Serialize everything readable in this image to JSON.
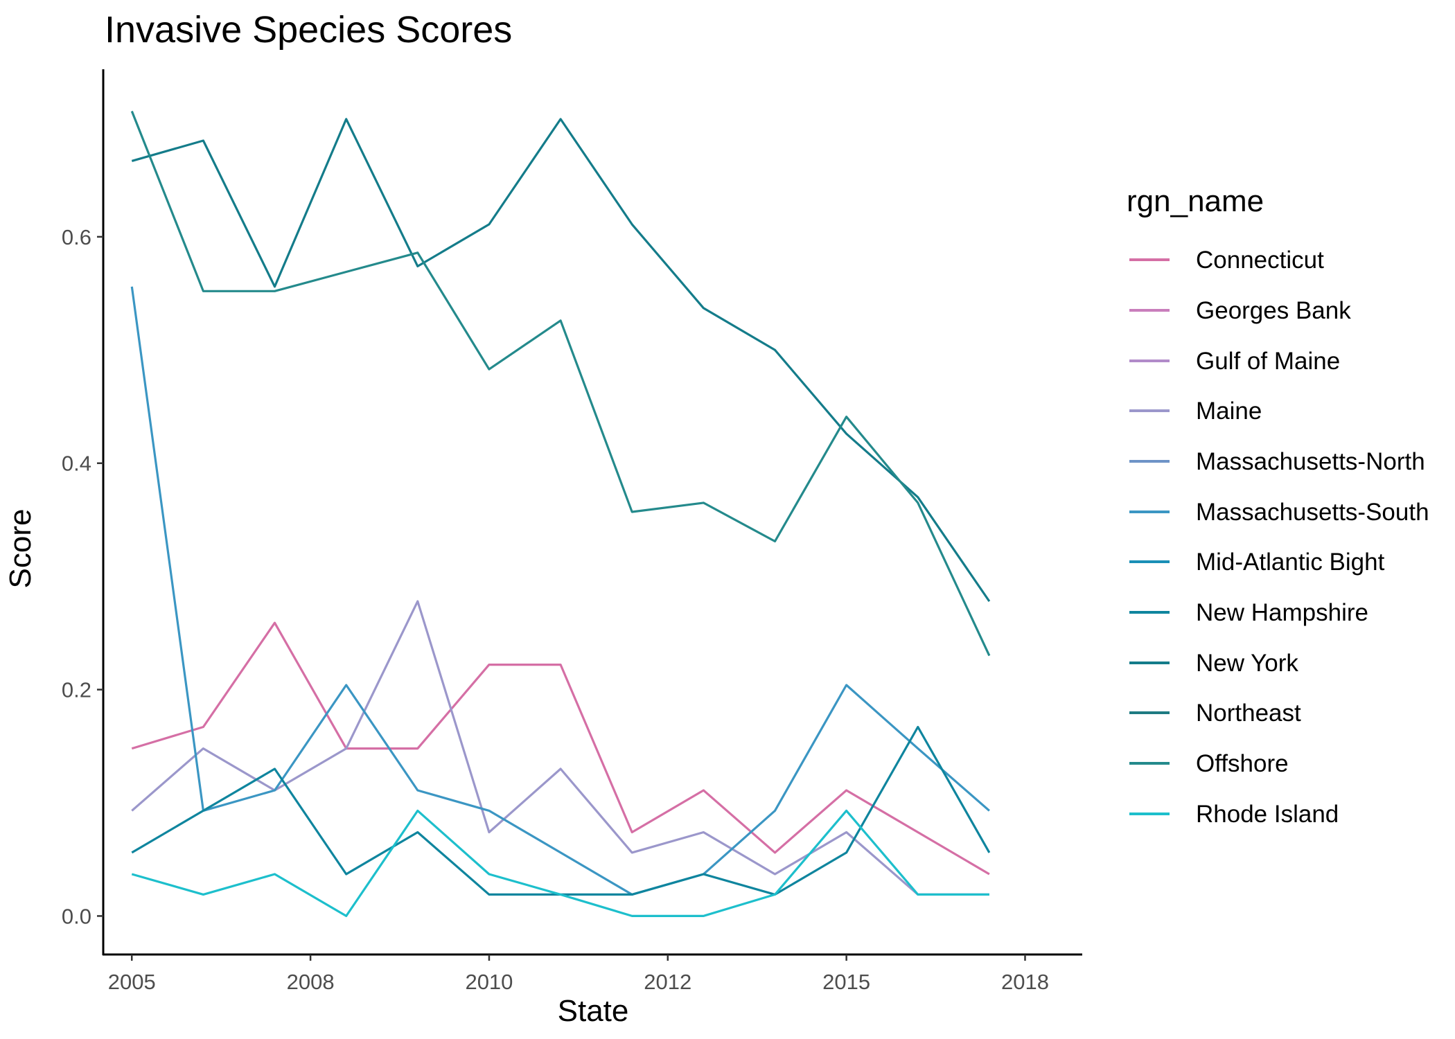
{
  "chart_data": {
    "type": "line",
    "title": "Invasive Species Scores",
    "xlabel": "State",
    "ylabel": "Score",
    "legend_title": "rgn_name",
    "legend_position": "right",
    "grid": false,
    "xlim": [
      2004.6,
      2018.3
    ],
    "ylim": [
      -0.034,
      0.748
    ],
    "x_ticks": [
      {
        "value": 2005,
        "label": "2005"
      },
      {
        "value": 2007.5,
        "label": "2008"
      },
      {
        "value": 2010,
        "label": "2010"
      },
      {
        "value": 2012.5,
        "label": "2012"
      },
      {
        "value": 2015,
        "label": "2015"
      },
      {
        "value": 2017.5,
        "label": "2018"
      }
    ],
    "y_ticks": [
      {
        "value": 0.0,
        "label": "0.0"
      },
      {
        "value": 0.2,
        "label": "0.2"
      },
      {
        "value": 0.4,
        "label": "0.4"
      },
      {
        "value": 0.6,
        "label": "0.6"
      }
    ],
    "x": [
      2005,
      2006,
      2007,
      2008,
      2009,
      2010,
      2011,
      2012,
      2013,
      2014,
      2015,
      2016,
      2017
    ],
    "series": [
      {
        "name": "Connecticut",
        "color": "#D56FA5",
        "values": [
          0.148,
          0.167,
          0.259,
          0.148,
          0.148,
          0.222,
          0.222,
          0.074,
          0.111,
          0.056,
          0.111,
          0.074,
          0.037
        ]
      },
      {
        "name": "Georges Bank",
        "color": "#C97EBC",
        "values": [
          null,
          null,
          null,
          null,
          null,
          null,
          null,
          null,
          null,
          null,
          null,
          null,
          null
        ]
      },
      {
        "name": "Gulf of Maine",
        "color": "#B18BC9",
        "values": [
          null,
          null,
          null,
          null,
          null,
          null,
          null,
          null,
          null,
          null,
          null,
          null,
          null
        ]
      },
      {
        "name": "Maine",
        "color": "#9B97CB",
        "values": [
          0.093,
          0.148,
          0.111,
          0.148,
          0.278,
          0.074,
          0.13,
          0.056,
          0.074,
          0.037,
          0.074,
          0.019,
          0.019
        ]
      },
      {
        "name": "Massachusetts-North",
        "color": "#6E93C7",
        "values": [
          null,
          null,
          null,
          null,
          null,
          null,
          null,
          null,
          null,
          null,
          null,
          null,
          null
        ]
      },
      {
        "name": "Massachusetts-South",
        "color": "#3B96C3",
        "values": [
          0.556,
          0.093,
          0.111,
          0.204,
          0.111,
          0.093,
          0.056,
          0.019,
          0.037,
          0.093,
          0.204,
          0.148,
          0.093
        ]
      },
      {
        "name": "Mid-Atlantic Bight",
        "color": "#1A8FB6",
        "values": [
          null,
          null,
          null,
          null,
          null,
          null,
          null,
          null,
          null,
          null,
          null,
          null,
          null
        ]
      },
      {
        "name": "New Hampshire",
        "color": "#0F859E",
        "values": [
          0.056,
          0.093,
          0.13,
          0.037,
          0.074,
          0.019,
          0.019,
          0.019,
          0.037,
          0.019,
          0.056,
          0.167,
          0.056
        ]
      },
      {
        "name": "New York",
        "color": "#147C8A",
        "values": [
          0.667,
          0.685,
          0.556,
          0.704,
          0.574,
          0.611,
          0.704,
          0.611,
          0.537,
          0.5,
          0.426,
          0.37,
          0.278
        ]
      },
      {
        "name": "Northeast",
        "color": "#1E7B82",
        "values": [
          null,
          null,
          null,
          null,
          null,
          null,
          null,
          null,
          null,
          null,
          null,
          null,
          null
        ]
      },
      {
        "name": "Offshore",
        "color": "#248A8C",
        "values": [
          0.711,
          0.552,
          0.552,
          0.569,
          0.586,
          0.483,
          0.526,
          0.357,
          0.365,
          0.331,
          0.441,
          0.365,
          0.23
        ]
      },
      {
        "name": "Rhode Island",
        "color": "#1DBFCC",
        "values": [
          0.037,
          0.019,
          0.037,
          0.0,
          0.093,
          0.037,
          0.019,
          0.0,
          0.0,
          0.019,
          0.093,
          0.019,
          0.019
        ]
      }
    ]
  }
}
